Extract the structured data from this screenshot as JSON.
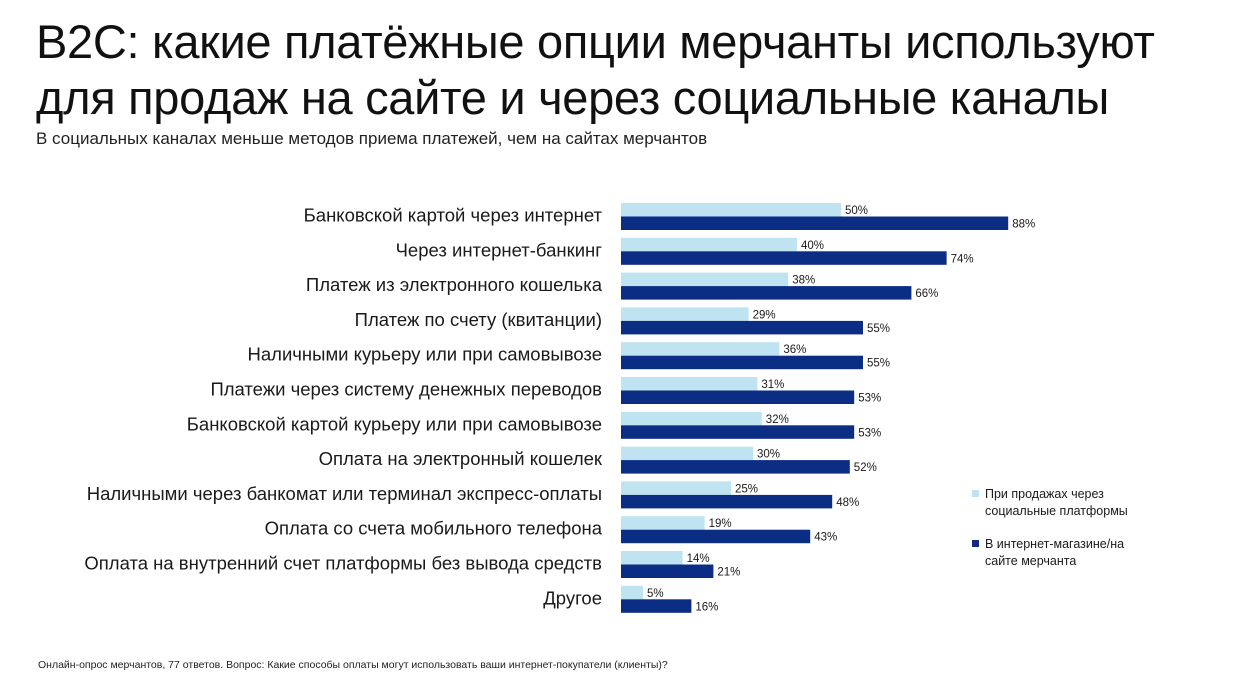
{
  "title": "B2C: какие платёжные опции мерчанты используют для продаж на сайте и через социальные каналы",
  "subtitle": "В социальных каналах меньше методов приема платежей, чем на сайтах мерчантов",
  "footnote": "Онлайн-опрос мерчантов, 77 ответов. Вопрос: Какие способы оплаты могут использовать ваши интернет-покупатели (клиенты)?",
  "colors": {
    "social": "#bfe3f0",
    "site": "#0b2d84"
  },
  "legend": [
    {
      "label": "При продажах через социальные платформы",
      "color": "#bfe3f0"
    },
    {
      "label": "В интернет-магазине/на сайте мерчанта",
      "color": "#0b2d84"
    }
  ],
  "chart_data": {
    "type": "bar",
    "orientation": "horizontal",
    "categories": [
      "Банковской картой через интернет",
      "Через интернет-банкинг",
      "Платеж из электронного кошелька",
      "Платеж по счету (квитанции)",
      "Наличными курьеру или при самовывозе",
      "Платежи через систему денежных переводов",
      "Банковской картой курьеру или при самовывозе",
      "Оплата на электронный кошелек",
      "Наличными через банкомат или терминал экспресс-оплаты",
      "Оплата со счета мобильного телефона",
      "Оплата на внутренний счет платформы без вывода средств",
      "Другое"
    ],
    "series": [
      {
        "name": "При продажах через социальные платформы",
        "values": [
          50,
          40,
          38,
          29,
          36,
          31,
          32,
          30,
          25,
          19,
          14,
          5
        ]
      },
      {
        "name": "В интернет-магазине/на сайте мерчанта",
        "values": [
          88,
          74,
          66,
          55,
          55,
          53,
          53,
          52,
          48,
          43,
          21,
          16
        ]
      }
    ],
    "value_suffix": "%",
    "xlim": [
      0,
      100
    ],
    "legend_position": "right",
    "grid": false
  }
}
